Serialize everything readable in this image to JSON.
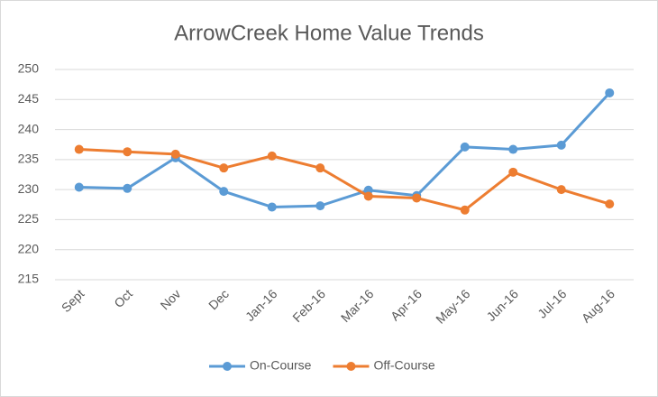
{
  "chart_data": {
    "type": "line",
    "title": "ArrowCreek Home Value Trends",
    "categories": [
      "Sept",
      "Oct",
      "Nov",
      "Dec",
      "Jan-16",
      "Feb-16",
      "Mar-16",
      "Apr-16",
      "May-16",
      "Jun-16",
      "Jul-16",
      "Aug-16"
    ],
    "series": [
      {
        "name": "On-Course",
        "color": "#5b9bd5",
        "values": [
          230.4,
          230.2,
          235.3,
          229.7,
          227.1,
          227.3,
          229.9,
          229.0,
          237.1,
          236.7,
          237.4,
          246.1
        ]
      },
      {
        "name": "Off-Course",
        "color": "#ed7d31",
        "values": [
          236.7,
          236.3,
          235.9,
          233.6,
          235.6,
          233.6,
          228.9,
          228.6,
          226.6,
          232.9,
          230.0,
          227.6
        ]
      }
    ],
    "ylim": [
      215,
      250
    ],
    "yticks": [
      215,
      220,
      225,
      230,
      235,
      240,
      245,
      250
    ],
    "grid": true,
    "legend": "bottom"
  }
}
